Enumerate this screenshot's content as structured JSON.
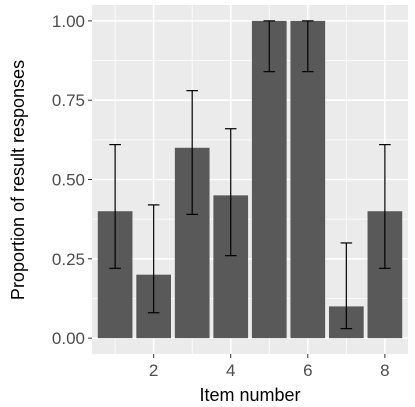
{
  "chart_data": {
    "type": "bar",
    "xlabel": "Item number",
    "ylabel": "Proportion of result responses",
    "categories": [
      1,
      2,
      3,
      4,
      5,
      6,
      7,
      8
    ],
    "x_tick_labels": [
      "2",
      "4",
      "6",
      "8"
    ],
    "x_ticks": [
      2,
      4,
      6,
      8
    ],
    "y_ticks": [
      0,
      0.25,
      0.5,
      0.75,
      1.0
    ],
    "y_tick_labels": [
      "0.00",
      "0.25",
      "0.50",
      "0.75",
      "1.00"
    ],
    "ylim": [
      -0.05,
      1.05
    ],
    "xlim": [
      0.4,
      8.6
    ],
    "values": [
      0.4,
      0.2,
      0.6,
      0.45,
      1.0,
      1.0,
      0.1,
      0.4
    ],
    "error_low": [
      0.22,
      0.08,
      0.39,
      0.26,
      0.84,
      0.84,
      0.03,
      0.22
    ],
    "error_high": [
      0.61,
      0.42,
      0.78,
      0.66,
      1.0,
      1.0,
      0.3,
      0.61
    ],
    "grid": true,
    "colors": {
      "bar": "#595959",
      "panel": "#ebebeb",
      "grid": "#ffffff",
      "errorbar": "#000000"
    }
  }
}
